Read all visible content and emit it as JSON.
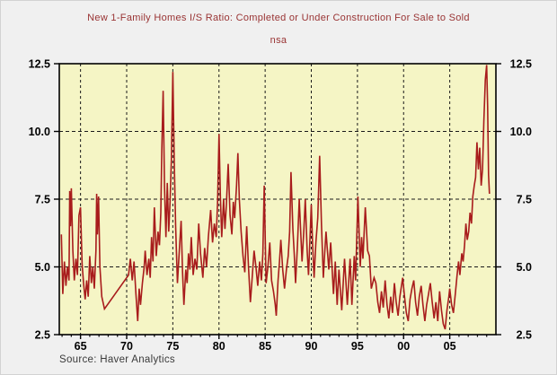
{
  "colors": {
    "bg": "#f0f0f0",
    "plot_bg": "#f5f5c5",
    "line": "#a81c1c",
    "title_text": "#993333",
    "axis_text": "#000000",
    "frame": "#000000",
    "grid": "#1a1a1a",
    "source_text": "#3a3a3a"
  },
  "chart_data": {
    "type": "line",
    "title": "New 1-Family Homes I/S Ratio: Completed or Under Construction For Sale to Sold",
    "subtitle": "nsa",
    "source": "Source: Haver Analytics",
    "xlim": [
      1962.7,
      2010.0
    ],
    "ylim": [
      2.5,
      12.5
    ],
    "grid": "dashed",
    "legend": "none",
    "y_ticks": [
      {
        "value": 2.5,
        "label": "2.5"
      },
      {
        "value": 5.0,
        "label": "5.0"
      },
      {
        "value": 7.5,
        "label": "7.5"
      },
      {
        "value": 10.0,
        "label": "10.0"
      },
      {
        "value": 12.5,
        "label": "12.5"
      }
    ],
    "grid_y_values": [
      5.0,
      7.5,
      10.0
    ],
    "x_ticks": [
      {
        "year": 1965,
        "label": "65"
      },
      {
        "year": 1970,
        "label": "70"
      },
      {
        "year": 1975,
        "label": "75"
      },
      {
        "year": 1980,
        "label": "80"
      },
      {
        "year": 1985,
        "label": "85"
      },
      {
        "year": 1990,
        "label": "90"
      },
      {
        "year": 1995,
        "label": "95"
      },
      {
        "year": 2000,
        "label": "00"
      },
      {
        "year": 2005,
        "label": "05"
      }
    ],
    "series": [
      {
        "name": "is_ratio_nsa",
        "points": [
          [
            1962.92,
            6.2
          ],
          [
            1963.08,
            4.0
          ],
          [
            1963.25,
            5.2
          ],
          [
            1963.42,
            4.3
          ],
          [
            1963.58,
            5.0
          ],
          [
            1963.75,
            4.5
          ],
          [
            1963.83,
            7.8
          ],
          [
            1963.92,
            6.5
          ],
          [
            1964.0,
            7.9
          ],
          [
            1964.17,
            5.6
          ],
          [
            1964.33,
            4.5
          ],
          [
            1964.5,
            5.3
          ],
          [
            1964.67,
            4.7
          ],
          [
            1964.83,
            6.9
          ],
          [
            1965.0,
            7.2
          ],
          [
            1965.17,
            5.1
          ],
          [
            1965.33,
            4.4
          ],
          [
            1965.5,
            3.8
          ],
          [
            1965.67,
            4.5
          ],
          [
            1965.83,
            3.9
          ],
          [
            1966.0,
            5.4
          ],
          [
            1966.17,
            4.4
          ],
          [
            1966.33,
            5.0
          ],
          [
            1966.5,
            4.2
          ],
          [
            1966.67,
            5.6
          ],
          [
            1966.75,
            7.7
          ],
          [
            1966.83,
            6.2
          ],
          [
            1966.95,
            7.6
          ],
          [
            1967.1,
            5.0
          ],
          [
            1967.3,
            3.9
          ],
          [
            1967.6,
            3.45
          ],
          [
            1970.2,
            4.7
          ],
          [
            1970.4,
            5.3
          ],
          [
            1970.6,
            4.5
          ],
          [
            1970.8,
            5.2
          ],
          [
            1971.0,
            4.0
          ],
          [
            1971.2,
            3.0
          ],
          [
            1971.35,
            4.2
          ],
          [
            1971.5,
            3.6
          ],
          [
            1971.7,
            4.4
          ],
          [
            1971.9,
            5.0
          ],
          [
            1972.0,
            5.6
          ],
          [
            1972.2,
            4.7
          ],
          [
            1972.4,
            5.3
          ],
          [
            1972.55,
            4.6
          ],
          [
            1972.7,
            6.1
          ],
          [
            1972.85,
            5.2
          ],
          [
            1973.0,
            7.2
          ],
          [
            1973.2,
            5.4
          ],
          [
            1973.4,
            6.3
          ],
          [
            1973.55,
            5.8
          ],
          [
            1973.7,
            7.0
          ],
          [
            1973.8,
            9.3
          ],
          [
            1973.95,
            11.5
          ],
          [
            1974.1,
            8.0
          ],
          [
            1974.25,
            6.1
          ],
          [
            1974.4,
            8.1
          ],
          [
            1974.55,
            6.3
          ],
          [
            1974.7,
            7.4
          ],
          [
            1974.85,
            9.0
          ],
          [
            1975.0,
            12.2
          ],
          [
            1975.15,
            9.0
          ],
          [
            1975.3,
            6.5
          ],
          [
            1975.5,
            4.4
          ],
          [
            1975.7,
            5.6
          ],
          [
            1975.9,
            6.7
          ],
          [
            1976.05,
            4.8
          ],
          [
            1976.2,
            3.6
          ],
          [
            1976.4,
            4.9
          ],
          [
            1976.55,
            4.4
          ],
          [
            1976.7,
            5.5
          ],
          [
            1976.85,
            4.9
          ],
          [
            1977.0,
            6.1
          ],
          [
            1977.2,
            4.7
          ],
          [
            1977.4,
            5.3
          ],
          [
            1977.6,
            4.9
          ],
          [
            1977.8,
            6.6
          ],
          [
            1978.0,
            5.5
          ],
          [
            1978.25,
            4.6
          ],
          [
            1978.45,
            5.7
          ],
          [
            1978.65,
            5.0
          ],
          [
            1978.85,
            6.1
          ],
          [
            1979.1,
            7.1
          ],
          [
            1979.3,
            5.9
          ],
          [
            1979.5,
            6.6
          ],
          [
            1979.7,
            6.1
          ],
          [
            1979.85,
            7.4
          ],
          [
            1980.0,
            9.9
          ],
          [
            1980.15,
            7.6
          ],
          [
            1980.3,
            6.1
          ],
          [
            1980.5,
            7.5
          ],
          [
            1980.65,
            6.4
          ],
          [
            1980.8,
            7.3
          ],
          [
            1981.0,
            8.8
          ],
          [
            1981.2,
            6.9
          ],
          [
            1981.4,
            6.2
          ],
          [
            1981.55,
            7.4
          ],
          [
            1981.7,
            6.8
          ],
          [
            1981.9,
            8.0
          ],
          [
            1982.05,
            9.2
          ],
          [
            1982.2,
            7.5
          ],
          [
            1982.4,
            6.3
          ],
          [
            1982.6,
            5.4
          ],
          [
            1982.8,
            4.8
          ],
          [
            1983.0,
            6.5
          ],
          [
            1983.2,
            5.0
          ],
          [
            1983.4,
            3.7
          ],
          [
            1983.6,
            4.6
          ],
          [
            1983.8,
            5.6
          ],
          [
            1984.0,
            5.0
          ],
          [
            1984.2,
            4.3
          ],
          [
            1984.4,
            5.2
          ],
          [
            1984.6,
            4.5
          ],
          [
            1984.75,
            5.5
          ],
          [
            1984.9,
            8.0
          ],
          [
            1985.1,
            4.4
          ],
          [
            1985.3,
            5.0
          ],
          [
            1985.5,
            5.9
          ],
          [
            1985.7,
            4.5
          ],
          [
            1985.9,
            4.1
          ],
          [
            1986.1,
            3.6
          ],
          [
            1986.2,
            3.2
          ],
          [
            1986.4,
            4.5
          ],
          [
            1986.55,
            5.2
          ],
          [
            1986.7,
            6.0
          ],
          [
            1986.9,
            4.9
          ],
          [
            1987.1,
            4.2
          ],
          [
            1987.3,
            4.9
          ],
          [
            1987.5,
            5.4
          ],
          [
            1987.65,
            6.3
          ],
          [
            1987.8,
            8.5
          ],
          [
            1988.0,
            6.4
          ],
          [
            1988.15,
            5.5
          ],
          [
            1988.3,
            4.4
          ],
          [
            1988.5,
            5.8
          ],
          [
            1988.7,
            7.5
          ],
          [
            1989.0,
            5.2
          ],
          [
            1989.2,
            6.4
          ],
          [
            1989.35,
            7.5
          ],
          [
            1989.55,
            5.6
          ],
          [
            1989.7,
            4.7
          ],
          [
            1989.85,
            6.0
          ],
          [
            1990.0,
            7.3
          ],
          [
            1990.15,
            5.8
          ],
          [
            1990.3,
            4.6
          ],
          [
            1990.5,
            5.9
          ],
          [
            1990.7,
            6.8
          ],
          [
            1990.9,
            9.1
          ],
          [
            1991.1,
            6.6
          ],
          [
            1991.3,
            4.6
          ],
          [
            1991.45,
            5.5
          ],
          [
            1991.6,
            6.3
          ],
          [
            1991.9,
            4.9
          ],
          [
            1992.1,
            5.9
          ],
          [
            1992.4,
            4.0
          ],
          [
            1992.6,
            5.2
          ],
          [
            1992.8,
            3.6
          ],
          [
            1993.0,
            4.9
          ],
          [
            1993.3,
            3.4
          ],
          [
            1993.6,
            5.3
          ],
          [
            1993.9,
            3.6
          ],
          [
            1994.2,
            5.3
          ],
          [
            1994.4,
            3.6
          ],
          [
            1994.65,
            5.4
          ],
          [
            1994.8,
            4.5
          ],
          [
            1995.05,
            7.6
          ],
          [
            1995.3,
            5.0
          ],
          [
            1995.45,
            6.1
          ],
          [
            1995.6,
            5.3
          ],
          [
            1995.85,
            7.2
          ],
          [
            1996.1,
            5.6
          ],
          [
            1996.3,
            5.4
          ],
          [
            1996.5,
            4.2
          ],
          [
            1996.8,
            4.6
          ],
          [
            1997.0,
            4.4
          ],
          [
            1997.2,
            3.7
          ],
          [
            1997.4,
            3.3
          ],
          [
            1997.6,
            4.1
          ],
          [
            1997.8,
            3.5
          ],
          [
            1998.0,
            4.5
          ],
          [
            1998.2,
            3.6
          ],
          [
            1998.4,
            3.1
          ],
          [
            1998.6,
            3.9
          ],
          [
            1998.8,
            3.3
          ],
          [
            1999.0,
            4.4
          ],
          [
            1999.2,
            3.7
          ],
          [
            1999.4,
            3.2
          ],
          [
            1999.6,
            3.9
          ],
          [
            1999.9,
            4.6
          ],
          [
            2000.1,
            3.9
          ],
          [
            2000.3,
            3.3
          ],
          [
            2000.5,
            3.0
          ],
          [
            2000.7,
            3.8
          ],
          [
            2000.9,
            4.2
          ],
          [
            2001.1,
            4.5
          ],
          [
            2001.3,
            3.7
          ],
          [
            2001.5,
            3.2
          ],
          [
            2001.7,
            3.9
          ],
          [
            2001.9,
            4.3
          ],
          [
            2002.1,
            3.6
          ],
          [
            2002.3,
            3.0
          ],
          [
            2002.5,
            3.6
          ],
          [
            2002.7,
            4.0
          ],
          [
            2002.9,
            4.4
          ],
          [
            2003.1,
            3.7
          ],
          [
            2003.3,
            3.1
          ],
          [
            2003.5,
            3.7
          ],
          [
            2003.7,
            3.0
          ],
          [
            2003.9,
            4.1
          ],
          [
            2004.1,
            3.4
          ],
          [
            2004.3,
            2.9
          ],
          [
            2004.5,
            2.7
          ],
          [
            2004.7,
            3.4
          ],
          [
            2004.9,
            3.9
          ],
          [
            2005.0,
            4.2
          ],
          [
            2005.2,
            3.6
          ],
          [
            2005.4,
            3.3
          ],
          [
            2005.6,
            4.0
          ],
          [
            2005.8,
            4.7
          ],
          [
            2005.95,
            5.2
          ],
          [
            2006.1,
            4.7
          ],
          [
            2006.3,
            5.5
          ],
          [
            2006.45,
            5.2
          ],
          [
            2006.6,
            5.8
          ],
          [
            2006.75,
            6.6
          ],
          [
            2006.9,
            6.0
          ],
          [
            2007.05,
            6.3
          ],
          [
            2007.2,
            7.0
          ],
          [
            2007.35,
            6.6
          ],
          [
            2007.5,
            7.6
          ],
          [
            2007.65,
            8.0
          ],
          [
            2007.8,
            8.3
          ],
          [
            2007.95,
            9.6
          ],
          [
            2008.1,
            8.6
          ],
          [
            2008.25,
            9.4
          ],
          [
            2008.4,
            8.0
          ],
          [
            2008.55,
            8.6
          ],
          [
            2008.7,
            10.4
          ],
          [
            2008.85,
            11.9
          ],
          [
            2009.0,
            12.45
          ],
          [
            2009.1,
            10.9
          ],
          [
            2009.2,
            8.4
          ],
          [
            2009.3,
            7.7
          ]
        ]
      }
    ]
  }
}
